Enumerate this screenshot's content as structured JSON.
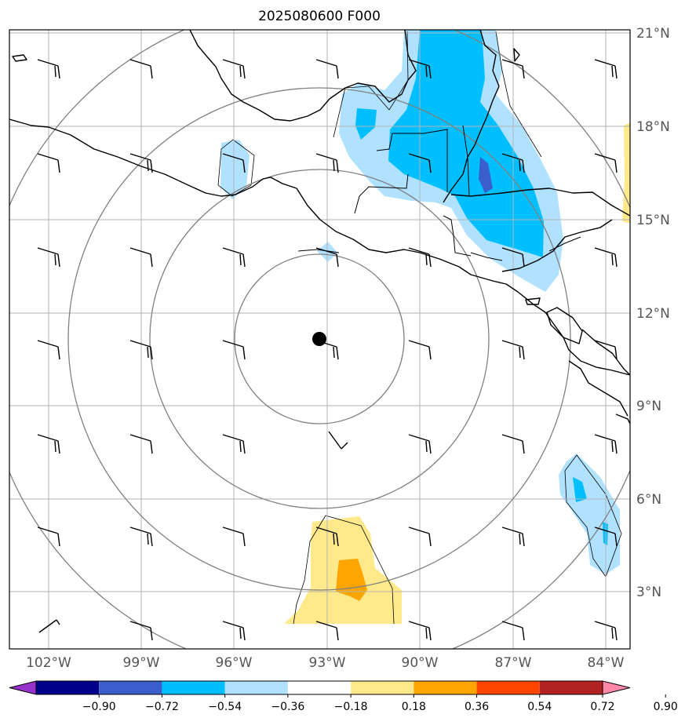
{
  "title": "2025080600 F000",
  "lat_labels": [
    "21°N",
    "18°N",
    "15°N",
    "12°N",
    "9°N",
    "6°N",
    "3°N"
  ],
  "lon_labels": [
    "102°W",
    "99°W",
    "96°W",
    "93°W",
    "90°W",
    "87°W",
    "84°W"
  ],
  "colorbar": {
    "tick_labels": [
      "−0.90",
      "−0.72",
      "−0.54",
      "−0.36",
      "−0.18",
      "0.18",
      "0.36",
      "0.54",
      "0.72",
      "0.90"
    ],
    "colors": [
      "#9932cc",
      "#00008b",
      "#3a5fcd",
      "#00bfff",
      "#b0e2ff",
      "#ffffff",
      "#ffe98a",
      "#ffa500",
      "#ff4500",
      "#b22222",
      "#ff88aa"
    ]
  },
  "center_marker": "storm-center",
  "colors": {
    "grid": "#b3b3b3",
    "range_rings": "#808080",
    "coast": "#000000"
  }
}
